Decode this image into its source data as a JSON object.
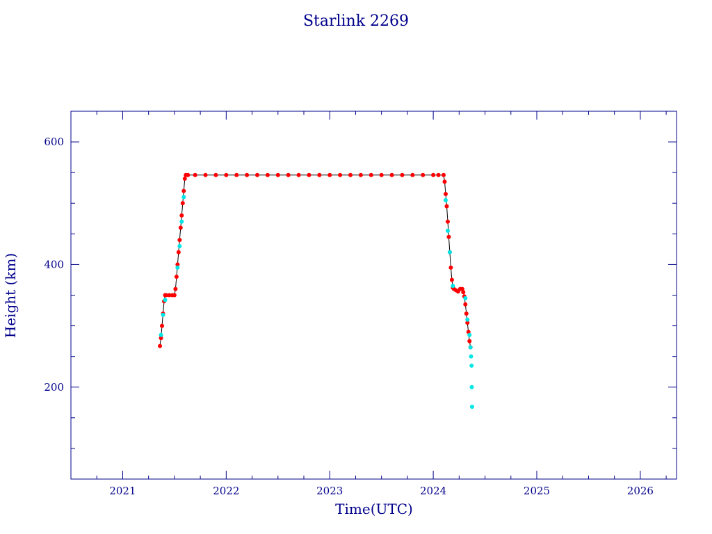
{
  "chart_data": {
    "type": "scatter",
    "title": "Starlink 2269",
    "xlabel": "Time(UTC)",
    "ylabel": "Height (km)",
    "xlim": [
      2020.5,
      2026.35
    ],
    "ylim": [
      50,
      650
    ],
    "x_ticks": [
      "2021",
      "2022",
      "2023",
      "2024",
      "2025",
      "2026"
    ],
    "y_ticks": [
      "200",
      "400",
      "600"
    ],
    "grid": false,
    "colors": {
      "axis": "#00008b",
      "primary_marker": "#ff0000",
      "secondary_marker": "#00e5e5",
      "line": "#000000"
    },
    "series": [
      {
        "color": "#ff0000",
        "x": [
          2021.36,
          2021.37,
          2021.38,
          2021.39,
          2021.4,
          2021.41,
          2021.42,
          2021.45,
          2021.48,
          2021.5,
          2021.51,
          2021.52,
          2021.53,
          2021.54,
          2021.55,
          2021.56,
          2021.57,
          2021.58,
          2021.59,
          2021.6,
          2021.61,
          2021.63,
          2021.7,
          2021.8,
          2021.9,
          2022.0,
          2022.1,
          2022.2,
          2022.3,
          2022.4,
          2022.5,
          2022.6,
          2022.7,
          2022.8,
          2022.9,
          2023.0,
          2023.1,
          2023.2,
          2023.3,
          2023.4,
          2023.5,
          2023.6,
          2023.7,
          2023.8,
          2023.9,
          2024.0,
          2024.05,
          2024.1,
          2024.11,
          2024.12,
          2024.13,
          2024.14,
          2024.15,
          2024.16,
          2024.17,
          2024.18,
          2024.19,
          2024.2,
          2024.22,
          2024.24,
          2024.26,
          2024.28,
          2024.29,
          2024.3,
          2024.31,
          2024.32,
          2024.33,
          2024.34,
          2024.35,
          2024.36
        ],
        "y": [
          267,
          280,
          300,
          320,
          340,
          350,
          350,
          350,
          350,
          350,
          360,
          380,
          400,
          420,
          440,
          460,
          480,
          500,
          520,
          540,
          546,
          546,
          546,
          546,
          546,
          546,
          546,
          546,
          546,
          546,
          546,
          546,
          546,
          546,
          546,
          546,
          546,
          546,
          546,
          546,
          546,
          546,
          546,
          546,
          546,
          546,
          546,
          546,
          535,
          515,
          495,
          470,
          445,
          420,
          395,
          375,
          362,
          360,
          358,
          356,
          360,
          360,
          355,
          348,
          335,
          320,
          305,
          290,
          275,
          265
        ]
      },
      {
        "color": "#00e5e5",
        "x": [
          2021.37,
          2021.39,
          2021.41,
          2021.53,
          2021.55,
          2021.57,
          2021.59,
          2024.12,
          2024.14,
          2024.16,
          2024.19,
          2024.31,
          2024.33,
          2024.35,
          2024.36,
          2024.365,
          2024.37,
          2024.372,
          2024.375
        ],
        "y": [
          285,
          318,
          342,
          395,
          430,
          470,
          510,
          505,
          455,
          420,
          365,
          345,
          310,
          285,
          265,
          250,
          235,
          200,
          168
        ]
      }
    ]
  }
}
